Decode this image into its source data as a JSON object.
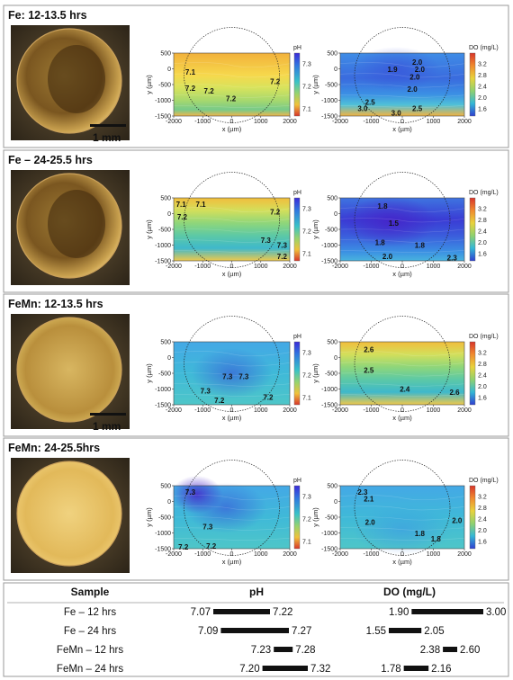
{
  "panels": [
    {
      "title": "Fe: 12-13.5 hrs",
      "micrograph": {
        "scale_bar": "1 mm",
        "shade": "dark"
      },
      "ph_map": {
        "colorbar_label": "pH",
        "colorbar_ticks": [
          "7.3",
          "7.2",
          "7.1"
        ],
        "contour_labels": [
          "7.1",
          "7.2",
          "7.2",
          "7.2",
          "7.2"
        ],
        "dominant": "yellow"
      },
      "do_map": {
        "colorbar_label": "DO (mg/L)",
        "colorbar_ticks": [
          "3.2",
          "2.8",
          "2.4",
          "2.0",
          "1.6"
        ],
        "contour_labels": [
          "2.0",
          "1.9",
          "2.0",
          "2.0",
          "2.0",
          "2.5",
          "3.0",
          "2.5",
          "3.0"
        ],
        "dominant": "blue"
      }
    },
    {
      "title": "Fe – 24-25.5 hrs",
      "micrograph": {
        "scale_bar": "",
        "shade": "dark"
      },
      "ph_map": {
        "colorbar_label": "pH",
        "colorbar_ticks": [
          "7.3",
          "7.2",
          "7.1"
        ],
        "contour_labels": [
          "7.1",
          "7.1",
          "7.2",
          "7.2",
          "7.3",
          "7.3",
          "7.2"
        ],
        "dominant": "green"
      },
      "do_map": {
        "colorbar_label": "DO (mg/L)",
        "colorbar_ticks": [
          "3.2",
          "2.8",
          "2.4",
          "2.0",
          "1.6"
        ],
        "contour_labels": [
          "1.8",
          "1.5",
          "1.8",
          "1.8",
          "2.0",
          "2.3"
        ],
        "dominant": "deepblue"
      }
    },
    {
      "title": "FeMn: 12-13.5 hrs",
      "micrograph": {
        "scale_bar": "1 mm",
        "shade": "light"
      },
      "ph_map": {
        "colorbar_label": "pH",
        "colorbar_ticks": [
          "7.3",
          "7.2",
          "7.1"
        ],
        "contour_labels": [
          "7.3",
          "7.3",
          "7.3",
          "7.2",
          "7.2"
        ],
        "dominant": "cyan"
      },
      "do_map": {
        "colorbar_label": "DO (mg/L)",
        "colorbar_ticks": [
          "3.2",
          "2.8",
          "2.4",
          "2.0",
          "1.6"
        ],
        "contour_labels": [
          "2.6",
          "2.5",
          "2.4",
          "2.6"
        ],
        "dominant": "green"
      }
    },
    {
      "title": "FeMn: 24-25.5hrs",
      "micrograph": {
        "scale_bar": "",
        "shade": "bright"
      },
      "ph_map": {
        "colorbar_label": "pH",
        "colorbar_ticks": [
          "7.3",
          "7.2",
          "7.1"
        ],
        "contour_labels": [
          "7.3",
          "7.3",
          "7.2",
          "7.2"
        ],
        "dominant": "cyan"
      },
      "do_map": {
        "colorbar_label": "DO (mg/L)",
        "colorbar_ticks": [
          "3.2",
          "2.8",
          "2.4",
          "2.0",
          "1.6"
        ],
        "contour_labels": [
          "2.3",
          "2.1",
          "2.0",
          "1.8",
          "1.8",
          "2.0"
        ],
        "dominant": "cyan"
      }
    }
  ],
  "axes": {
    "x_label": "x (µm)",
    "y_label": "y (µm)",
    "x_ticks": [
      "-2000",
      "-1000",
      "0",
      "1000",
      "2000"
    ],
    "y_ticks": [
      "500",
      "0",
      "-500",
      "-1000",
      "-1500"
    ]
  },
  "chart_data": {
    "type": "table",
    "columns": [
      "Sample",
      "pH",
      "DO (mg/L)"
    ],
    "rows": [
      {
        "sample": "Fe – 12 hrs",
        "ph": [
          7.07,
          7.22
        ],
        "ph_labels": [
          "7.07",
          "7.22"
        ],
        "do": [
          1.9,
          3.0
        ],
        "do_labels": [
          "1.90",
          "3.00"
        ]
      },
      {
        "sample": "Fe – 24 hrs",
        "ph": [
          7.09,
          7.27
        ],
        "ph_labels": [
          "7.09",
          "7.27"
        ],
        "do": [
          1.55,
          2.05
        ],
        "do_labels": [
          "1.55",
          "2.05"
        ]
      },
      {
        "sample": "FeMn – 12 hrs",
        "ph": [
          7.23,
          7.28
        ],
        "ph_labels": [
          "7.23",
          "7.28"
        ],
        "do": [
          2.38,
          2.6
        ],
        "do_labels": [
          "2.38",
          "2.60"
        ]
      },
      {
        "sample": "FeMn – 24 hrs",
        "ph": [
          7.2,
          7.32
        ],
        "ph_labels": [
          "7.20",
          "7.32"
        ],
        "do": [
          1.78,
          2.16
        ],
        "do_labels": [
          "1.78",
          "2.16"
        ]
      }
    ]
  }
}
